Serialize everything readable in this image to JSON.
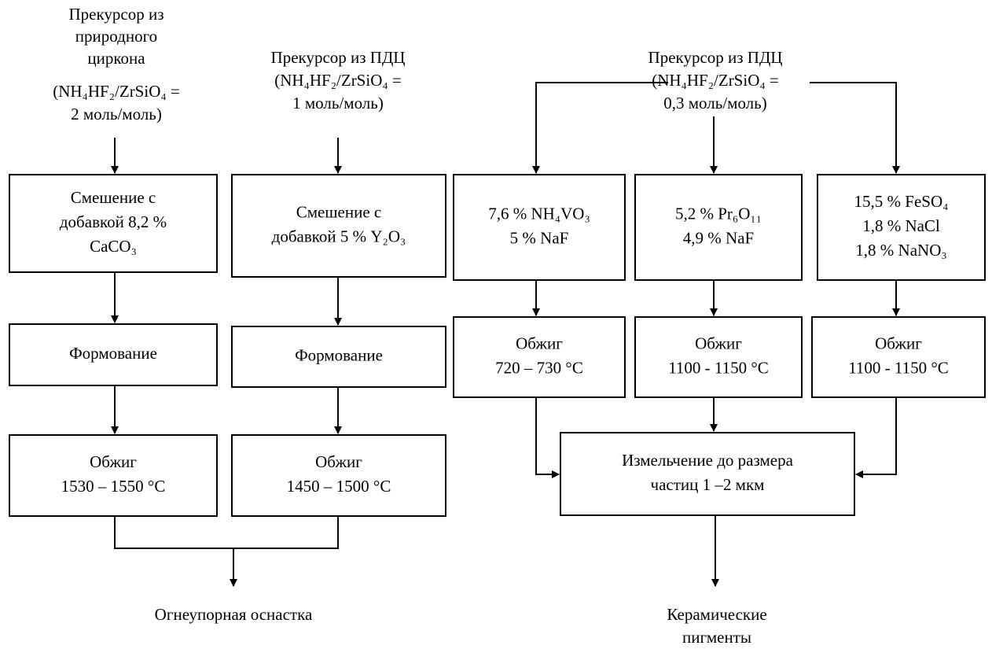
{
  "sources": [
    {
      "lines": [
        "Прекурсор из",
        "природного",
        "циркона",
        "(NH₄HF₂/ZrSiO₄ =",
        "2 моль/моль)"
      ]
    },
    {
      "lines": [
        "Прекурсор из ПДЦ",
        "(NH₄HF₂/ZrSiO₄ =",
        "1 моль/моль)"
      ]
    },
    {
      "lines": [
        "Прекурсор из ПДЦ",
        "(NH₄HF₂/ZrSiO₄ =",
        "0,3 моль/моль)"
      ]
    }
  ],
  "boxes": [
    {
      "lines": [
        "Смешение с",
        "добавкой 8,2 %",
        "CaCO₃"
      ]
    },
    {
      "lines": [
        "Смешение с",
        "добавкой 5 % Y₂O₃"
      ]
    },
    {
      "lines": [
        "7,6 % NH₄VO₃",
        "5 % NaF"
      ]
    },
    {
      "lines": [
        "5,2 % Pr₆O₁₁",
        "4,9 % NaF"
      ]
    },
    {
      "lines": [
        "15,5 % FeSO₄",
        "1,8 % NaCl",
        "1,8 % NaNO₃"
      ]
    },
    {
      "lines": [
        "Формование"
      ]
    },
    {
      "lines": [
        "Формование"
      ]
    },
    {
      "lines": [
        "Обжиг",
        "720 – 730 °C"
      ]
    },
    {
      "lines": [
        "Обжиг",
        "1100 - 1150 °C"
      ]
    },
    {
      "lines": [
        "Обжиг",
        "1100 - 1150 °C"
      ]
    },
    {
      "lines": [
        "Обжиг",
        "1530 – 1550 °C"
      ]
    },
    {
      "lines": [
        "Обжиг",
        "1450 – 1500 °C"
      ]
    },
    {
      "lines": [
        "Измельчение до размера",
        "частиц 1 –2 мкм"
      ]
    }
  ],
  "outputs": [
    {
      "lines": [
        "Огнеупорная оснастка"
      ]
    },
    {
      "lines": [
        "Керамические",
        "пигменты"
      ]
    }
  ]
}
